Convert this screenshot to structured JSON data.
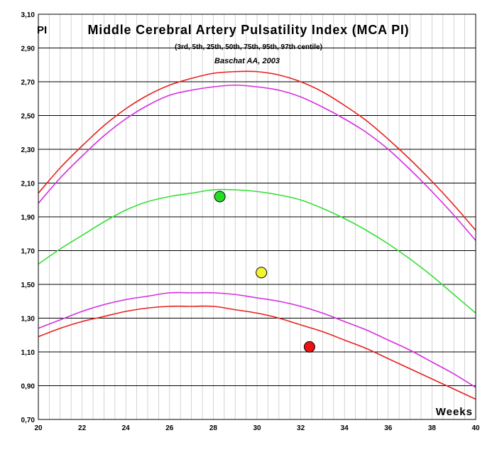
{
  "chart_data": {
    "type": "line",
    "title": "Middle Cerebral Artery Pulsatility Index (MCA PI)",
    "subtitle": "(3rd, 5th, 25th, 50th, 75th, 95th, 97th centile)",
    "source": "Baschat AA, 2003",
    "ylabel": "PI",
    "xlabel": "Weeks",
    "xlim": [
      20,
      40
    ],
    "ylim": [
      0.7,
      3.1
    ],
    "xticks": [
      "20",
      "22",
      "24",
      "26",
      "28",
      "30",
      "32",
      "34",
      "36",
      "38",
      "40"
    ],
    "yticks": [
      "0,70",
      "0,90",
      "1,10",
      "1,30",
      "1,50",
      "1,70",
      "1,90",
      "2,10",
      "2,30",
      "2,50",
      "2,70",
      "2,90",
      "3,10"
    ],
    "grid": true,
    "x": [
      20,
      21,
      22,
      23,
      24,
      25,
      26,
      27,
      28,
      29,
      30,
      31,
      32,
      33,
      34,
      35,
      36,
      37,
      38,
      39,
      40
    ],
    "series": [
      {
        "color": "#e8201c",
        "values": [
          2.04,
          2.19,
          2.32,
          2.44,
          2.54,
          2.62,
          2.68,
          2.72,
          2.75,
          2.76,
          2.76,
          2.74,
          2.7,
          2.64,
          2.56,
          2.47,
          2.36,
          2.24,
          2.11,
          1.97,
          1.82
        ]
      },
      {
        "color": "#d62ee0",
        "values": [
          1.98,
          2.13,
          2.26,
          2.38,
          2.48,
          2.56,
          2.62,
          2.65,
          2.67,
          2.68,
          2.67,
          2.65,
          2.61,
          2.55,
          2.48,
          2.4,
          2.3,
          2.18,
          2.05,
          1.91,
          1.76
        ]
      },
      {
        "color": "#33e033",
        "values": [
          1.62,
          1.71,
          1.79,
          1.87,
          1.94,
          1.99,
          2.02,
          2.04,
          2.06,
          2.06,
          2.05,
          2.03,
          2.0,
          1.95,
          1.89,
          1.82,
          1.74,
          1.65,
          1.55,
          1.44,
          1.33
        ]
      },
      {
        "color": "#d62ee0",
        "values": [
          1.24,
          1.29,
          1.34,
          1.38,
          1.41,
          1.43,
          1.45,
          1.45,
          1.45,
          1.44,
          1.42,
          1.4,
          1.37,
          1.33,
          1.28,
          1.23,
          1.17,
          1.11,
          1.04,
          0.97,
          0.89
        ]
      },
      {
        "color": "#e8201c",
        "values": [
          1.19,
          1.24,
          1.28,
          1.31,
          1.34,
          1.36,
          1.37,
          1.37,
          1.37,
          1.35,
          1.33,
          1.3,
          1.26,
          1.22,
          1.17,
          1.12,
          1.06,
          1.0,
          0.94,
          0.88,
          0.82
        ]
      }
    ],
    "points": [
      {
        "x": 28.3,
        "y": 2.02,
        "color": "#22dd22"
      },
      {
        "x": 30.2,
        "y": 1.57,
        "color": "#f4f430"
      },
      {
        "x": 32.4,
        "y": 1.13,
        "color": "#ee1111"
      }
    ]
  }
}
